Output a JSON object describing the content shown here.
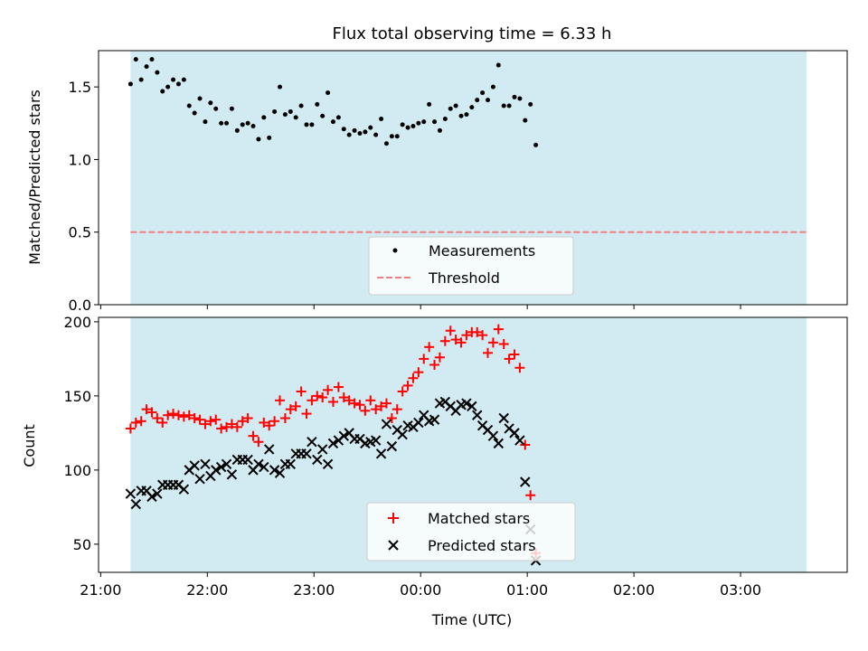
{
  "figure_title": "Flux total observing time = 6.33 h",
  "colors": {
    "shade": "#add8e6",
    "measurement": "#000000",
    "threshold": "#f08080",
    "matched": "#ff0000",
    "predicted": "#000000"
  },
  "chart_data": [
    {
      "type": "scatter",
      "panel": "top",
      "title": "Flux total observing time = 6.33 h",
      "ylabel": "Matched/Predicted stars",
      "xlabel": "",
      "ylim": [
        0,
        1.75
      ],
      "yticks": [
        0.0,
        0.5,
        1.0,
        1.5
      ],
      "ytick_labels": [
        "0.0",
        "0.5",
        "1.0",
        "1.5"
      ],
      "x_unit": "hours after 21:00 UTC",
      "xlim": [
        -0.02,
        7.0
      ],
      "shaded_span": [
        0.28,
        6.62
      ],
      "threshold": 0.5,
      "legend": {
        "placement": "bottom-center",
        "entries": [
          "Measurements",
          "Threshold"
        ]
      },
      "series": [
        {
          "name": "Measurements",
          "x_start": 0.28,
          "x_step": 0.05,
          "values": [
            1.52,
            1.69,
            1.55,
            1.64,
            1.69,
            1.6,
            1.47,
            1.5,
            1.55,
            1.52,
            1.55,
            1.37,
            1.32,
            1.42,
            1.26,
            1.39,
            1.35,
            1.25,
            1.25,
            1.35,
            1.2,
            1.24,
            1.25,
            1.23,
            1.14,
            1.29,
            1.15,
            1.33,
            1.5,
            1.31,
            1.33,
            1.29,
            1.37,
            1.24,
            1.24,
            1.38,
            1.3,
            1.46,
            1.26,
            1.29,
            1.21,
            1.17,
            1.2,
            1.18,
            1.19,
            1.22,
            1.17,
            1.28,
            1.11,
            1.16,
            1.16,
            1.24,
            1.22,
            1.23,
            1.25,
            1.26,
            1.38,
            1.26,
            1.2,
            1.28,
            1.35,
            1.37,
            1.3,
            1.31,
            1.36,
            1.41,
            1.46,
            1.41,
            1.5,
            1.65,
            1.37,
            1.37,
            1.43,
            1.42,
            1.27,
            1.38,
            1.1
          ]
        }
      ]
    },
    {
      "type": "scatter",
      "panel": "bottom",
      "ylabel": "Count",
      "xlabel": "Time (UTC)",
      "ylim": [
        31,
        203
      ],
      "yticks": [
        50,
        100,
        150,
        200
      ],
      "ytick_labels": [
        "50",
        "100",
        "150",
        "200"
      ],
      "x_unit": "hours after 21:00 UTC",
      "xlim": [
        -0.02,
        7.0
      ],
      "xticks": [
        0,
        1,
        2,
        3,
        4,
        5,
        6
      ],
      "xtick_labels": [
        "21:00",
        "22:00",
        "23:00",
        "00:00",
        "01:00",
        "02:00",
        "03:00"
      ],
      "shaded_span": [
        0.28,
        6.62
      ],
      "legend": {
        "placement": "bottom-center",
        "entries": [
          "Matched stars",
          "Predicted stars"
        ]
      },
      "series": [
        {
          "name": "Matched stars",
          "x_start": 0.28,
          "x_step": 0.05,
          "values": [
            128,
            132,
            133,
            141,
            139,
            135,
            132,
            137,
            138,
            137,
            136,
            137,
            135,
            134,
            131,
            133,
            134,
            128,
            129,
            131,
            129,
            133,
            135,
            123,
            119,
            132,
            130,
            133,
            147,
            135,
            141,
            143,
            153,
            138,
            147,
            150,
            149,
            154,
            146,
            156,
            149,
            147,
            145,
            144,
            140,
            147,
            141,
            143,
            145,
            135,
            141,
            153,
            157,
            162,
            166,
            175,
            183,
            171,
            176,
            187,
            194,
            188,
            186,
            191,
            193,
            193,
            191,
            179,
            186,
            195,
            185,
            175,
            178,
            169,
            117,
            83,
            44
          ]
        },
        {
          "name": "Predicted stars",
          "x_start": 0.28,
          "x_step": 0.05,
          "values": [
            84,
            77,
            86,
            86,
            82,
            84,
            90,
            90,
            90,
            90,
            87,
            100,
            103,
            94,
            104,
            96,
            100,
            102,
            104,
            97,
            107,
            107,
            107,
            100,
            104,
            102,
            114,
            100,
            98,
            104,
            104,
            111,
            111,
            111,
            119,
            107,
            114,
            104,
            118,
            120,
            123,
            125,
            121,
            121,
            118,
            119,
            120,
            111,
            131,
            116,
            127,
            124,
            130,
            129,
            132,
            137,
            133,
            134,
            145,
            146,
            143,
            140,
            144,
            145,
            143,
            137,
            130,
            127,
            123,
            118,
            135,
            128,
            125,
            120,
            92,
            60,
            39
          ]
        }
      ]
    }
  ]
}
